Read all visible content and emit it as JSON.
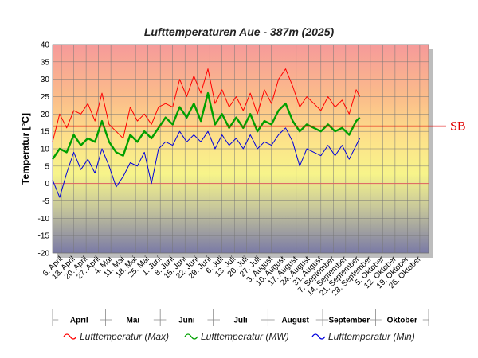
{
  "chart_data": {
    "type": "line",
    "title": "Lufttemperaturen Aue - 387m (2025)",
    "ylabel": "Temperatur [°C]",
    "ylim": [
      -20,
      40
    ],
    "yticks": [
      -20,
      -15,
      -10,
      -5,
      0,
      5,
      10,
      15,
      20,
      25,
      30,
      35,
      40
    ],
    "grid": true,
    "legend_position": "bottom",
    "x_range": [
      "2025-04-01",
      "2025-10-31"
    ],
    "x_tick_labels": [
      "6. April",
      "13. April",
      "20. April",
      "27. April",
      "4. Mai",
      "11. Mai",
      "18. Mai",
      "25. Mai",
      "1. Juni",
      "8. Juni",
      "15. Juni",
      "22. Juni",
      "29. Juni",
      "6. Juli",
      "13. Juli",
      "20. Juli",
      "27. Juli",
      "3. August",
      "10. August",
      "17. August",
      "24. August",
      "31. August",
      "7. September",
      "14. September",
      "21. September",
      "28. September",
      "5. Oktober",
      "12. Oktober",
      "19. Oktober",
      "26. Oktober"
    ],
    "months": [
      "April",
      "Mai",
      "Juni",
      "Juli",
      "August",
      "September",
      "Oktober"
    ],
    "reference_line": {
      "label": "SB",
      "value": 16.5,
      "color": "#e00000"
    },
    "x": [
      "2025-04-01",
      "2025-04-05",
      "2025-04-09",
      "2025-04-13",
      "2025-04-17",
      "2025-04-21",
      "2025-04-25",
      "2025-04-29",
      "2025-05-03",
      "2025-05-07",
      "2025-05-11",
      "2025-05-15",
      "2025-05-19",
      "2025-05-23",
      "2025-05-27",
      "2025-05-31",
      "2025-06-04",
      "2025-06-08",
      "2025-06-12",
      "2025-06-16",
      "2025-06-20",
      "2025-06-24",
      "2025-06-28",
      "2025-07-02",
      "2025-07-06",
      "2025-07-10",
      "2025-07-14",
      "2025-07-18",
      "2025-07-22",
      "2025-07-26",
      "2025-07-30",
      "2025-08-03",
      "2025-08-07",
      "2025-08-11",
      "2025-08-15",
      "2025-08-19",
      "2025-08-23",
      "2025-08-27",
      "2025-08-31",
      "2025-09-04",
      "2025-09-08",
      "2025-09-12",
      "2025-09-16",
      "2025-09-20",
      "2025-09-22"
    ],
    "series": [
      {
        "name": "Lufttemperatur (Max)",
        "color": "#ff0000",
        "values": [
          12,
          20,
          16,
          21,
          20,
          23,
          18,
          26,
          17,
          15,
          13,
          22,
          18,
          20,
          17,
          22,
          23,
          22,
          30,
          25,
          31,
          26,
          33,
          23,
          27,
          22,
          25,
          21,
          26,
          20,
          27,
          23,
          30,
          33,
          28,
          22,
          25,
          23,
          21,
          25,
          22,
          24,
          20,
          27,
          25
        ]
      },
      {
        "name": "Lufttemperatur (MW)",
        "color": "#00a000",
        "values": [
          7,
          10,
          9,
          14,
          11,
          13,
          12,
          18,
          12,
          9,
          8,
          14,
          12,
          15,
          13,
          16,
          19,
          17,
          22,
          19,
          23,
          18,
          26,
          17,
          20,
          16,
          19,
          16,
          20,
          15,
          18,
          17,
          21,
          23,
          18,
          15,
          17,
          16,
          15,
          17,
          15,
          16,
          14,
          18,
          19
        ]
      },
      {
        "name": "Lufttemperatur (Min)",
        "color": "#0000dd",
        "values": [
          1,
          -4,
          3,
          9,
          4,
          7,
          3,
          10,
          5,
          -1,
          2,
          6,
          5,
          9,
          0,
          10,
          12,
          11,
          15,
          12,
          14,
          12,
          15,
          10,
          14,
          11,
          13,
          10,
          14,
          10,
          12,
          11,
          14,
          16,
          12,
          5,
          10,
          9,
          8,
          11,
          8,
          11,
          7,
          11,
          13
        ]
      }
    ]
  }
}
